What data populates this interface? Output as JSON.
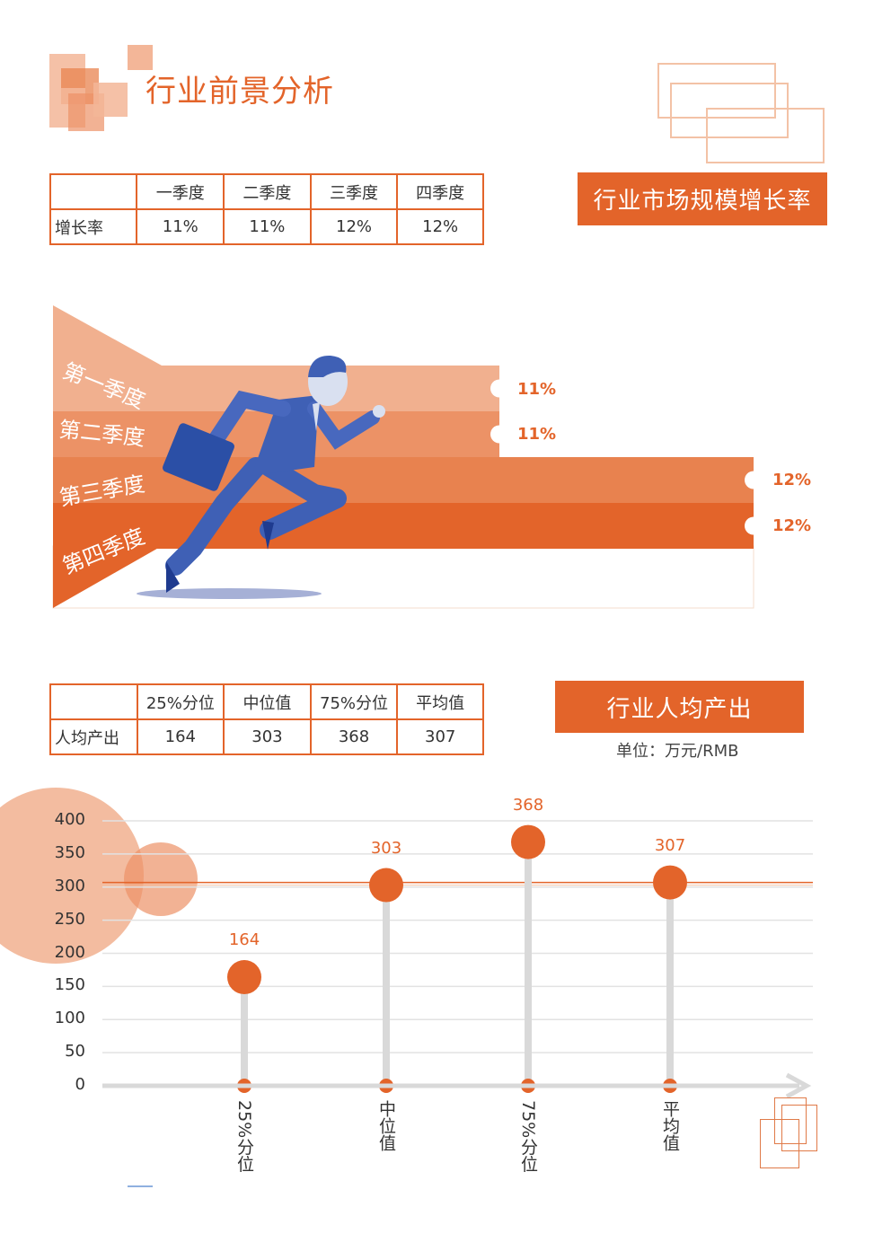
{
  "page": {
    "title": "行业前景分析"
  },
  "growth_section": {
    "banner": "行业市场规模增长率",
    "table": {
      "headers": [
        "",
        "一季度",
        "二季度",
        "三季度",
        "四季度"
      ],
      "row_label": "增长率",
      "values": [
        "11%",
        "11%",
        "12%",
        "12%"
      ]
    },
    "runner_chart": {
      "quarters": [
        "第一季度",
        "第二季度",
        "第三季度",
        "第四季度"
      ],
      "value_labels": [
        "11%",
        "11%",
        "12%",
        "12%"
      ],
      "values": [
        11,
        11,
        12,
        12
      ],
      "colors": [
        "#f1b08f",
        "#ec9266",
        "#e8824f",
        "#e3642a"
      ]
    }
  },
  "output_section": {
    "banner": "行业人均产出",
    "unit": "单位：万元/RMB",
    "table": {
      "headers": [
        "",
        "25%分位",
        "中位值",
        "75%分位",
        "平均值"
      ],
      "row_label": "人均产出",
      "values": [
        "164",
        "303",
        "368",
        "307"
      ]
    }
  },
  "chart_data": {
    "type": "lollipop",
    "categories": [
      "25%分位",
      "中位值",
      "75%分位",
      "平均值"
    ],
    "values": [
      164,
      303,
      368,
      307
    ],
    "value_labels": [
      "164",
      "303",
      "368",
      "307"
    ],
    "ylim": [
      0,
      400
    ],
    "yticks": [
      "0",
      "50",
      "100",
      "150",
      "200",
      "250",
      "300",
      "350",
      "400"
    ],
    "reference_line": 307,
    "grid": true,
    "accent": "#e3642a",
    "stem_color": "#d9d9d9"
  }
}
